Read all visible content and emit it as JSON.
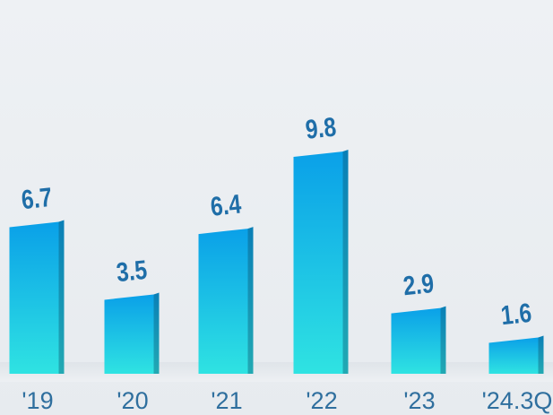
{
  "chart_data": {
    "type": "bar",
    "categories": [
      "'19",
      "'20",
      "'21",
      "'22",
      "'23",
      "'24.3Q"
    ],
    "values": [
      6.7,
      3.5,
      6.4,
      9.8,
      2.9,
      1.6
    ],
    "value_labels": [
      "6.7",
      "3.5",
      "6.4",
      "9.8",
      "2.9",
      "1.6"
    ],
    "title": "",
    "xlabel": "",
    "ylabel": "",
    "ylim": [
      0,
      10
    ],
    "grid": false,
    "legend": "none",
    "colors": {
      "bar_top": "#0aa3e8",
      "bar_bottom": "#2de0e4",
      "bar_side": "#1a8fb0",
      "label": "#1f6ea8"
    }
  }
}
